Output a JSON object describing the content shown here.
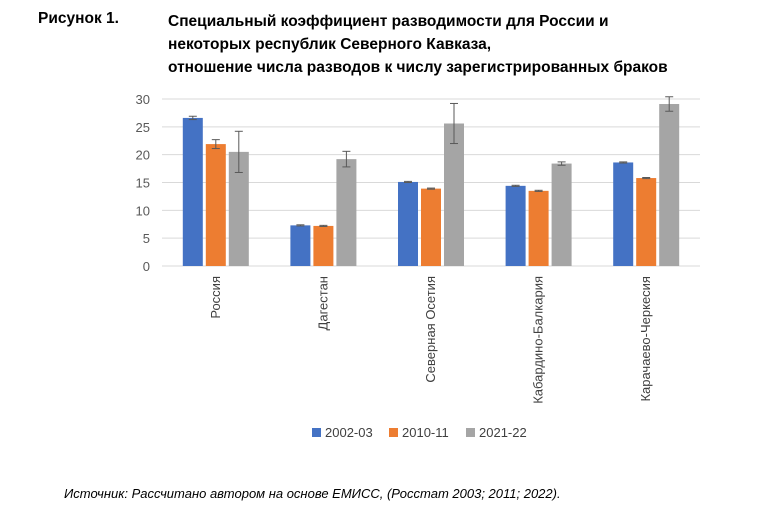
{
  "figure": {
    "label": "Рисунок 1.",
    "title_lines": [
      "Специальный коэффициент разводимости для России и",
      "некоторых республик Северного Кавказа,",
      "отношение числа разводов к числу зарегистрированных браков"
    ]
  },
  "source": "Источник: Рассчитано автором на основе ЕМИСС, (Росстат 2003; 2011; 2022).",
  "colors": {
    "2002-03": "#4472C4",
    "2010-11": "#ED7D31",
    "2021-22": "#A5A5A5",
    "grid": "#D9D9D9",
    "axis_text": "#595959"
  },
  "chart_data": {
    "type": "bar",
    "categories": [
      "Россия",
      "Дагестан",
      "Северная Осетия",
      "Кабардино-Балкария",
      "Карачаево-Черкесия"
    ],
    "series": [
      {
        "name": "2002-03",
        "values": [
          26.6,
          7.3,
          15.1,
          14.4,
          18.6
        ],
        "errors": [
          0.3,
          0.1,
          0.1,
          0.1,
          0.1
        ]
      },
      {
        "name": "2010-11",
        "values": [
          21.9,
          7.2,
          13.9,
          13.5,
          15.8
        ],
        "errors": [
          0.8,
          0.1,
          0.1,
          0.1,
          0.1
        ]
      },
      {
        "name": "2021-22",
        "values": [
          20.5,
          19.2,
          25.6,
          18.4,
          29.1
        ],
        "errors": [
          3.7,
          1.4,
          3.6,
          0.3,
          1.3
        ]
      }
    ],
    "ylim": [
      0,
      30
    ],
    "yticks": [
      0,
      5,
      10,
      15,
      20,
      25,
      30
    ],
    "grid": true,
    "legend": "bottom",
    "error_bars": true
  }
}
